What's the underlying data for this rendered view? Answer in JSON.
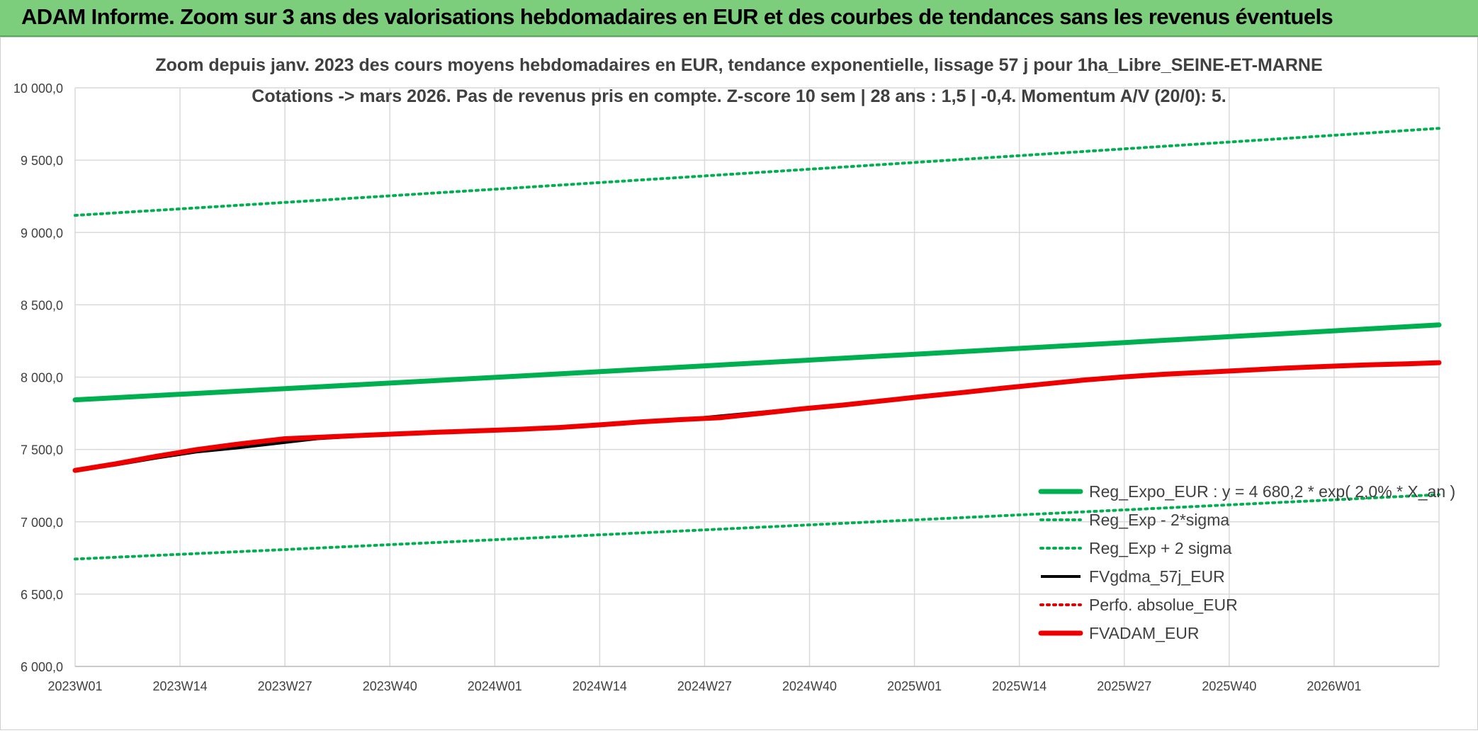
{
  "banner": {
    "title": "ADAM Informe. Zoom sur 3 ans des valorisations hebdomadaires en EUR et des courbes de tendances sans les revenus éventuels",
    "background": "#7ccd7c"
  },
  "chart_data": {
    "type": "line",
    "title": "Zoom depuis janv. 2023 des cours moyens hebdomadaires en EUR, tendance exponentielle, lissage 57 j pour 1ha_Libre_SEINE-ET-MARNE",
    "subtitle": "Cotations -> mars 2026. Pas de revenus pris en compte. Z-score 10 sem | 28 ans : 1,5 | -0,4. Momentum A/V (20/0): 5.",
    "xlabel": "",
    "ylabel": "",
    "x_ticks": [
      "2023W01",
      "2023W14",
      "2023W27",
      "2023W40",
      "2024W01",
      "2024W14",
      "2024W27",
      "2024W40",
      "2025W01",
      "2025W14",
      "2025W27",
      "2025W40",
      "2026W01"
    ],
    "x_tick_positions": [
      0,
      13,
      26,
      39,
      52,
      65,
      78,
      91,
      104,
      117,
      130,
      143,
      156
    ],
    "x_range": [
      0,
      169
    ],
    "ylim": [
      6000,
      10000
    ],
    "y_ticks": [
      "6 000,0",
      "6 500,0",
      "7 000,0",
      "7 500,0",
      "8 000,0",
      "8 500,0",
      "9 000,0",
      "9 500,0",
      "10 000,0"
    ],
    "y_tick_values": [
      6000,
      6500,
      7000,
      7500,
      8000,
      8500,
      9000,
      9500,
      10000
    ],
    "grid": true,
    "legend_position": "bottom-right",
    "series": [
      {
        "name": "Reg_Expo_EUR : y = 4 680,2 * exp( 2,0% * X_an )",
        "color": "#00b050",
        "style": "solid-thick",
        "x": [
          0,
          26,
          52,
          78,
          104,
          130,
          156,
          169
        ],
        "values": [
          7843,
          7920,
          7998,
          8078,
          8158,
          8239,
          8320,
          8361
        ]
      },
      {
        "name": "Reg_Exp - 2*sigma",
        "color": "#00b050",
        "style": "dotted",
        "x": [
          0,
          26,
          52,
          78,
          104,
          130,
          156,
          169
        ],
        "values": [
          6742,
          6808,
          6876,
          6944,
          7013,
          7082,
          7152,
          7188
        ]
      },
      {
        "name": "Reg_Exp + 2 sigma",
        "color": "#00b050",
        "style": "dotted",
        "x": [
          0,
          26,
          52,
          78,
          104,
          130,
          156,
          169
        ],
        "values": [
          9118,
          9208,
          9299,
          9391,
          9484,
          9578,
          9672,
          9720
        ]
      },
      {
        "name": "FVgdma_57j_EUR",
        "color": "#000000",
        "style": "solid",
        "x": [
          0,
          5,
          10,
          15,
          20,
          26,
          30,
          35,
          40,
          45,
          50,
          55,
          60,
          65,
          70,
          75,
          80,
          85,
          90,
          95,
          100,
          105,
          110,
          115,
          120,
          125,
          130,
          135,
          140,
          145,
          150,
          155,
          160,
          165,
          169
        ],
        "values": [
          7355,
          7392,
          7440,
          7482,
          7510,
          7548,
          7574,
          7590,
          7604,
          7615,
          7626,
          7636,
          7648,
          7664,
          7684,
          7706,
          7732,
          7758,
          7784,
          7808,
          7838,
          7868,
          7896,
          7922,
          7950,
          7976,
          7998,
          8014,
          8030,
          8046,
          8060,
          8072,
          8082,
          8092,
          8100
        ]
      },
      {
        "name": "Perfo. absolue_EUR",
        "color": "#e00000",
        "style": "dotted",
        "x": [],
        "values": []
      },
      {
        "name": "FVADAM_EUR",
        "color": "#ee0000",
        "style": "solid-thick",
        "x": [
          0,
          5,
          10,
          15,
          20,
          26,
          30,
          35,
          40,
          45,
          50,
          55,
          60,
          65,
          70,
          75,
          80,
          85,
          90,
          95,
          100,
          105,
          110,
          115,
          120,
          125,
          130,
          135,
          140,
          145,
          150,
          155,
          160,
          165,
          169
        ],
        "values": [
          7355,
          7400,
          7452,
          7498,
          7536,
          7574,
          7584,
          7596,
          7608,
          7619,
          7629,
          7639,
          7652,
          7670,
          7690,
          7706,
          7720,
          7750,
          7780,
          7806,
          7836,
          7866,
          7894,
          7924,
          7952,
          7980,
          8002,
          8020,
          8034,
          8048,
          8062,
          8074,
          8084,
          8092,
          8100
        ]
      }
    ]
  }
}
